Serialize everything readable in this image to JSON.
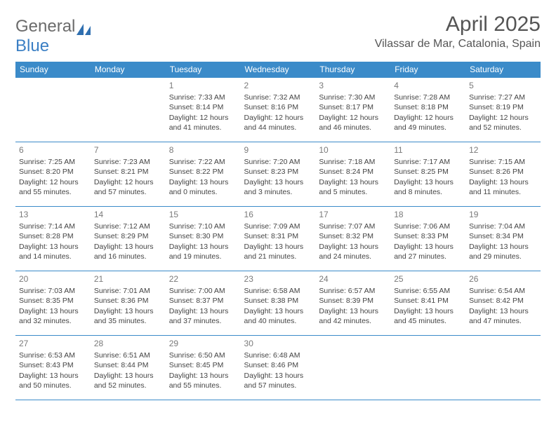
{
  "logo": {
    "text1": "General",
    "text2": "Blue",
    "icon_color": "#2f6fb0"
  },
  "title": "April 2025",
  "location": "Vilassar de Mar, Catalonia, Spain",
  "colors": {
    "header_bg": "#3b8bc9",
    "header_text": "#ffffff",
    "border": "#3b8bc9",
    "daynum": "#7a7a7a",
    "body_text": "#444444"
  },
  "day_headers": [
    "Sunday",
    "Monday",
    "Tuesday",
    "Wednesday",
    "Thursday",
    "Friday",
    "Saturday"
  ],
  "weeks": [
    [
      null,
      null,
      {
        "n": "1",
        "sunrise": "7:33 AM",
        "sunset": "8:14 PM",
        "day_h": "12",
        "day_m": "41"
      },
      {
        "n": "2",
        "sunrise": "7:32 AM",
        "sunset": "8:16 PM",
        "day_h": "12",
        "day_m": "44"
      },
      {
        "n": "3",
        "sunrise": "7:30 AM",
        "sunset": "8:17 PM",
        "day_h": "12",
        "day_m": "46"
      },
      {
        "n": "4",
        "sunrise": "7:28 AM",
        "sunset": "8:18 PM",
        "day_h": "12",
        "day_m": "49"
      },
      {
        "n": "5",
        "sunrise": "7:27 AM",
        "sunset": "8:19 PM",
        "day_h": "12",
        "day_m": "52"
      }
    ],
    [
      {
        "n": "6",
        "sunrise": "7:25 AM",
        "sunset": "8:20 PM",
        "day_h": "12",
        "day_m": "55"
      },
      {
        "n": "7",
        "sunrise": "7:23 AM",
        "sunset": "8:21 PM",
        "day_h": "12",
        "day_m": "57"
      },
      {
        "n": "8",
        "sunrise": "7:22 AM",
        "sunset": "8:22 PM",
        "day_h": "13",
        "day_m": "0"
      },
      {
        "n": "9",
        "sunrise": "7:20 AM",
        "sunset": "8:23 PM",
        "day_h": "13",
        "day_m": "3"
      },
      {
        "n": "10",
        "sunrise": "7:18 AM",
        "sunset": "8:24 PM",
        "day_h": "13",
        "day_m": "5"
      },
      {
        "n": "11",
        "sunrise": "7:17 AM",
        "sunset": "8:25 PM",
        "day_h": "13",
        "day_m": "8"
      },
      {
        "n": "12",
        "sunrise": "7:15 AM",
        "sunset": "8:26 PM",
        "day_h": "13",
        "day_m": "11"
      }
    ],
    [
      {
        "n": "13",
        "sunrise": "7:14 AM",
        "sunset": "8:28 PM",
        "day_h": "13",
        "day_m": "14"
      },
      {
        "n": "14",
        "sunrise": "7:12 AM",
        "sunset": "8:29 PM",
        "day_h": "13",
        "day_m": "16"
      },
      {
        "n": "15",
        "sunrise": "7:10 AM",
        "sunset": "8:30 PM",
        "day_h": "13",
        "day_m": "19"
      },
      {
        "n": "16",
        "sunrise": "7:09 AM",
        "sunset": "8:31 PM",
        "day_h": "13",
        "day_m": "21"
      },
      {
        "n": "17",
        "sunrise": "7:07 AM",
        "sunset": "8:32 PM",
        "day_h": "13",
        "day_m": "24"
      },
      {
        "n": "18",
        "sunrise": "7:06 AM",
        "sunset": "8:33 PM",
        "day_h": "13",
        "day_m": "27"
      },
      {
        "n": "19",
        "sunrise": "7:04 AM",
        "sunset": "8:34 PM",
        "day_h": "13",
        "day_m": "29"
      }
    ],
    [
      {
        "n": "20",
        "sunrise": "7:03 AM",
        "sunset": "8:35 PM",
        "day_h": "13",
        "day_m": "32"
      },
      {
        "n": "21",
        "sunrise": "7:01 AM",
        "sunset": "8:36 PM",
        "day_h": "13",
        "day_m": "35"
      },
      {
        "n": "22",
        "sunrise": "7:00 AM",
        "sunset": "8:37 PM",
        "day_h": "13",
        "day_m": "37"
      },
      {
        "n": "23",
        "sunrise": "6:58 AM",
        "sunset": "8:38 PM",
        "day_h": "13",
        "day_m": "40"
      },
      {
        "n": "24",
        "sunrise": "6:57 AM",
        "sunset": "8:39 PM",
        "day_h": "13",
        "day_m": "42"
      },
      {
        "n": "25",
        "sunrise": "6:55 AM",
        "sunset": "8:41 PM",
        "day_h": "13",
        "day_m": "45"
      },
      {
        "n": "26",
        "sunrise": "6:54 AM",
        "sunset": "8:42 PM",
        "day_h": "13",
        "day_m": "47"
      }
    ],
    [
      {
        "n": "27",
        "sunrise": "6:53 AM",
        "sunset": "8:43 PM",
        "day_h": "13",
        "day_m": "50"
      },
      {
        "n": "28",
        "sunrise": "6:51 AM",
        "sunset": "8:44 PM",
        "day_h": "13",
        "day_m": "52"
      },
      {
        "n": "29",
        "sunrise": "6:50 AM",
        "sunset": "8:45 PM",
        "day_h": "13",
        "day_m": "55"
      },
      {
        "n": "30",
        "sunrise": "6:48 AM",
        "sunset": "8:46 PM",
        "day_h": "13",
        "day_m": "57"
      },
      null,
      null,
      null
    ]
  ],
  "labels": {
    "sunrise": "Sunrise:",
    "sunset": "Sunset:",
    "daylight_pre": "Daylight:",
    "hours_word": "hours",
    "and_word": "and",
    "minutes_word": "minutes."
  }
}
